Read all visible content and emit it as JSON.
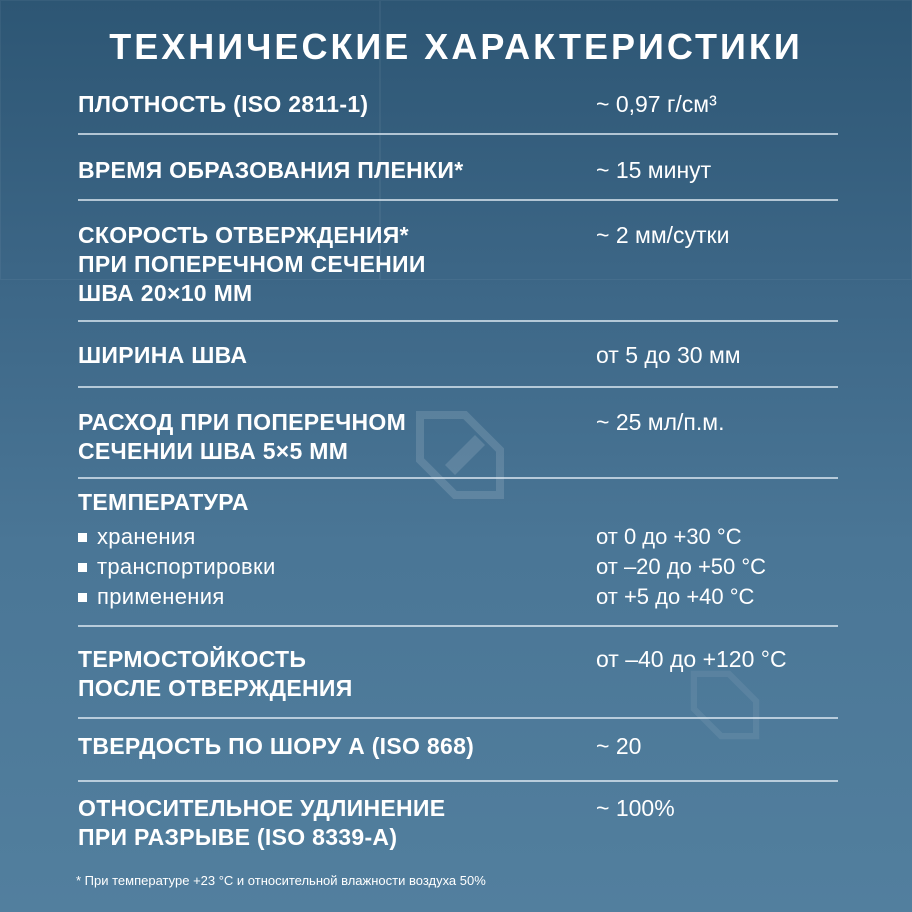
{
  "title": "ТЕХНИЧЕСКИЕ ХАРАКТЕРИСТИКИ",
  "rows": [
    {
      "label": "Плотность (ISO 2811-1)",
      "value": "~ 0,97 г/см³"
    },
    {
      "label": "Время образования пленки*",
      "value": "~ 15 минут"
    },
    {
      "label": "Скорость отверждения*",
      "label2": "при поперечном сечении",
      "label3": "шва 20×10 мм",
      "value": "~ 2 мм/сутки"
    },
    {
      "label": "Ширина шва",
      "value": "от 5 до 30 мм"
    },
    {
      "label": "Расход при поперечном",
      "label2": "сечении шва 5×5 мм",
      "value": "~ 25 мл/п.м."
    },
    {
      "label": "Температура",
      "items": [
        {
          "label": "хранения",
          "value": "от 0 до +30 °С"
        },
        {
          "label": "транспортировки",
          "value": "от –20 до +50 °С"
        },
        {
          "label": "применения",
          "value": "от +5 до +40 °С"
        }
      ]
    },
    {
      "label": "Термостойкость",
      "label2": "после отверждения",
      "value": "от –40 до +120 °С"
    },
    {
      "label": "Твердость по Шору А (ISO 868)",
      "value": "~ 20"
    },
    {
      "label": "Относительное удлинение",
      "label2": "при разрыве (ISO 8339-A)",
      "value": "~ 100%"
    }
  ],
  "footnote": "* При температуре +23 °С и относительной влажности воздуха 50%",
  "icons": {
    "watermark": "brush-logo-icon",
    "bullet": "square-bullet-icon"
  }
}
